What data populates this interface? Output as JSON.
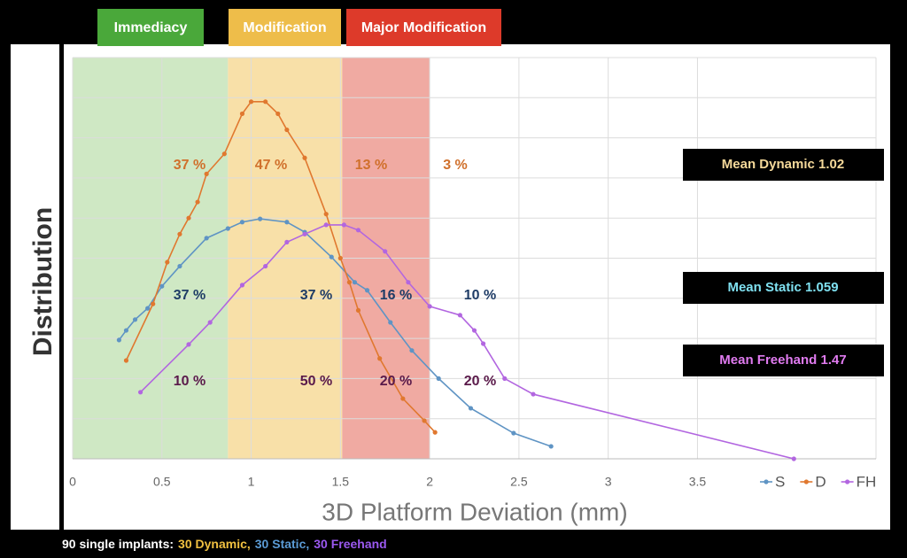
{
  "chart_data": {
    "type": "line",
    "y_label": "Distribution",
    "x_label": "3D Platform Deviation (mm)",
    "xlim": [
      0,
      4.5
    ],
    "xticks": [
      0,
      0.5,
      1,
      1.5,
      2,
      2.5,
      3,
      3.5
    ],
    "ylim": [
      0,
      10
    ],
    "grid": true,
    "legend": "bottom-right",
    "regions": [
      {
        "label": "Immediacy",
        "from": 0,
        "to": 0.87,
        "color": "#cfe8c4",
        "label_color": "#4aa83a"
      },
      {
        "label": "Modification",
        "from": 0.87,
        "to": 1.51,
        "color": "#f8e0a8",
        "label_color": "#eebd4a"
      },
      {
        "label": "Major Modification",
        "from": 1.51,
        "to": 2.0,
        "color": "#f0aaa2",
        "label_color": "#dd3a2a"
      }
    ],
    "series": [
      {
        "name": "S",
        "color": "#5f94c4",
        "label_color": "#1f3c66",
        "mean_label": "Mean Static 1.059",
        "mean_color": "#7fe0f0",
        "band_labels": [
          "37 %",
          "37 %",
          "16 %",
          "10 %"
        ],
        "x": [
          0.26,
          0.3,
          0.35,
          0.42,
          0.5,
          0.6,
          0.75,
          0.87,
          0.95,
          1.05,
          1.2,
          1.3,
          1.45,
          1.58,
          1.65,
          1.78,
          1.9,
          2.05,
          2.23,
          2.47,
          2.68
        ],
        "values": [
          2.96,
          3.2,
          3.47,
          3.75,
          4.3,
          4.8,
          5.5,
          5.74,
          5.9,
          5.98,
          5.9,
          5.65,
          5.03,
          4.4,
          4.2,
          3.4,
          2.7,
          2.0,
          1.26,
          0.64,
          0.31
        ]
      },
      {
        "name": "D",
        "color": "#e0782f",
        "label_color": "#d0702c",
        "mean_label": "Mean Dynamic 1.02",
        "mean_color": "#f5d99a",
        "band_labels": [
          "37 %",
          "47 %",
          "13 %",
          "3 %"
        ],
        "x": [
          0.3,
          0.45,
          0.53,
          0.6,
          0.65,
          0.7,
          0.75,
          0.85,
          0.95,
          1.0,
          1.08,
          1.15,
          1.2,
          1.3,
          1.42,
          1.5,
          1.55,
          1.6,
          1.72,
          1.85,
          1.97,
          2.03
        ],
        "values": [
          2.45,
          3.86,
          4.9,
          5.6,
          6.0,
          6.4,
          7.1,
          7.6,
          8.6,
          8.9,
          8.9,
          8.6,
          8.2,
          7.5,
          6.1,
          5.0,
          4.4,
          3.7,
          2.5,
          1.5,
          0.95,
          0.66
        ]
      },
      {
        "name": "FH",
        "color": "#b266e0",
        "label_color": "#5a1a4a",
        "mean_label": "Mean Freehand 1.47",
        "mean_color": "#e07bf0",
        "band_labels": [
          "10 %",
          "50 %",
          "20 %",
          "20 %"
        ],
        "x": [
          0.38,
          0.65,
          0.77,
          0.95,
          1.08,
          1.2,
          1.3,
          1.42,
          1.52,
          1.6,
          1.75,
          1.88,
          2.0,
          2.17,
          2.25,
          2.3,
          2.42,
          2.58,
          4.04
        ],
        "values": [
          1.66,
          2.85,
          3.4,
          4.33,
          4.8,
          5.4,
          5.6,
          5.83,
          5.83,
          5.7,
          5.17,
          4.4,
          3.8,
          3.58,
          3.2,
          2.87,
          2.0,
          1.61,
          0
        ]
      }
    ]
  },
  "caption": [
    {
      "text": "90 single implants:",
      "color": "#ffffff"
    },
    {
      "text": "30 Dynamic,",
      "color": "#f0c040"
    },
    {
      "text": "30 Static,",
      "color": "#5b9bd5"
    },
    {
      "text": "30 Freehand",
      "color": "#9b59f0"
    }
  ]
}
